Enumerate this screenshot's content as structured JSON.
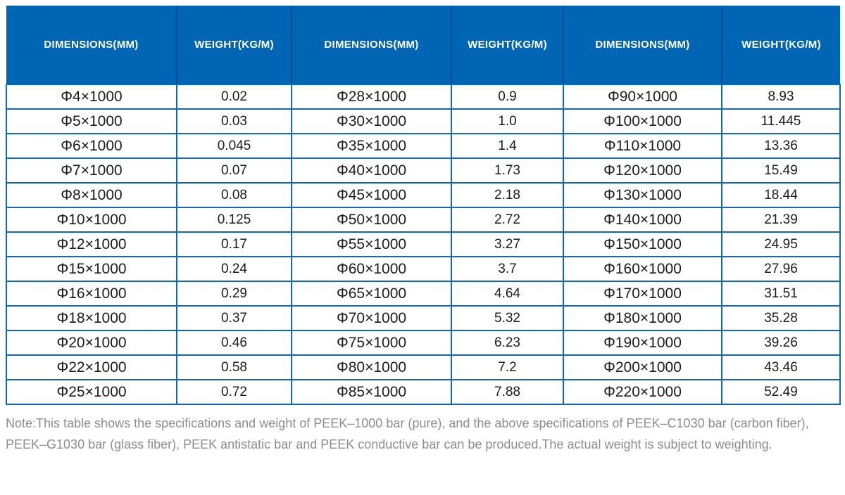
{
  "chart_data": {
    "type": "table",
    "header_labels": [
      "DIMENSIONS(MM)",
      "WEIGHT(KG/M)",
      "DIMENSIONS(MM)",
      "WEIGHT(KG/M)",
      "DIMENSIONS(MM)",
      "WEIGHT(KG/M)"
    ],
    "rows": [
      [
        "Φ4×1000",
        "0.02",
        "Φ28×1000",
        "0.9",
        "Φ90×1000",
        "8.93"
      ],
      [
        "Φ5×1000",
        "0.03",
        "Φ30×1000",
        "1.0",
        "Φ100×1000",
        "11.445"
      ],
      [
        "Φ6×1000",
        "0.045",
        "Φ35×1000",
        "1.4",
        "Φ110×1000",
        "13.36"
      ],
      [
        "Φ7×1000",
        "0.07",
        "Φ40×1000",
        "1.73",
        "Φ120×1000",
        "15.49"
      ],
      [
        "Φ8×1000",
        "0.08",
        "Φ45×1000",
        "2.18",
        "Φ130×1000",
        "18.44"
      ],
      [
        "Φ10×1000",
        "0.125",
        "Φ50×1000",
        "2.72",
        "Φ140×1000",
        "21.39"
      ],
      [
        "Φ12×1000",
        "0.17",
        "Φ55×1000",
        "3.27",
        "Φ150×1000",
        "24.95"
      ],
      [
        "Φ15×1000",
        "0.24",
        "Φ60×1000",
        "3.7",
        "Φ160×1000",
        "27.96"
      ],
      [
        "Φ16×1000",
        "0.29",
        "Φ65×1000",
        "4.64",
        "Φ170×1000",
        "31.51"
      ],
      [
        "Φ18×1000",
        "0.37",
        "Φ70×1000",
        "5.32",
        "Φ180×1000",
        "35.28"
      ],
      [
        "Φ20×1000",
        "0.46",
        "Φ75×1000",
        "6.23",
        "Φ190×1000",
        "39.26"
      ],
      [
        "Φ22×1000",
        "0.58",
        "Φ80×1000",
        "7.2",
        "Φ200×1000",
        "43.46"
      ],
      [
        "Φ25×1000",
        "0.72",
        "Φ85×1000",
        "7.88",
        "Φ220×1000",
        "52.49"
      ]
    ]
  },
  "note": {
    "text": "Note:This table shows the specifications and weight of PEEK–1000 bar (pure), and the above specifications of PEEK–C1030 bar (carbon fiber), PEEK–G1030 bar (glass fiber), PEEK antistatic bar and PEEK conductive bar can be produced.The actual weight is subject to weighting."
  },
  "colors": {
    "header_bg": "#0066b3",
    "header_divider": "#0a4d93",
    "grid_line": "#1166b5",
    "header_text": "#ffffff",
    "cell_text": "#1c1c1c",
    "note_text": "#8d8d8d"
  }
}
